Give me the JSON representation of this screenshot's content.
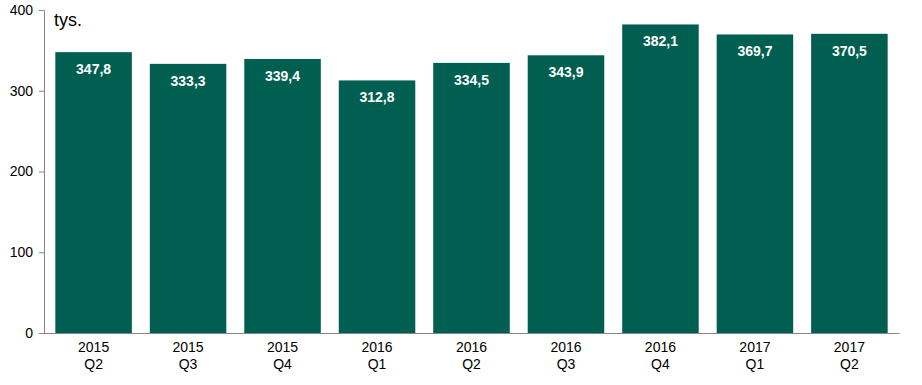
{
  "chart_data": {
    "type": "bar",
    "ylabel": "tys.",
    "categories": [
      "2015 Q2",
      "2015 Q3",
      "2015 Q4",
      "2016 Q1",
      "2016 Q2",
      "2016 Q3",
      "2016 Q4",
      "2017 Q1",
      "2017 Q2"
    ],
    "values": [
      347.8,
      333.3,
      339.4,
      312.8,
      334.5,
      343.9,
      382.1,
      369.7,
      370.5
    ],
    "value_labels": [
      "347,8",
      "333,3",
      "339,4",
      "312,8",
      "334,5",
      "343,9",
      "382,1",
      "369,7",
      "370,5"
    ],
    "color": "#005f50",
    "ylim": [
      0,
      400
    ],
    "yticks": [
      0,
      100,
      200,
      300,
      400
    ],
    "grid": false,
    "data_labels": true
  }
}
